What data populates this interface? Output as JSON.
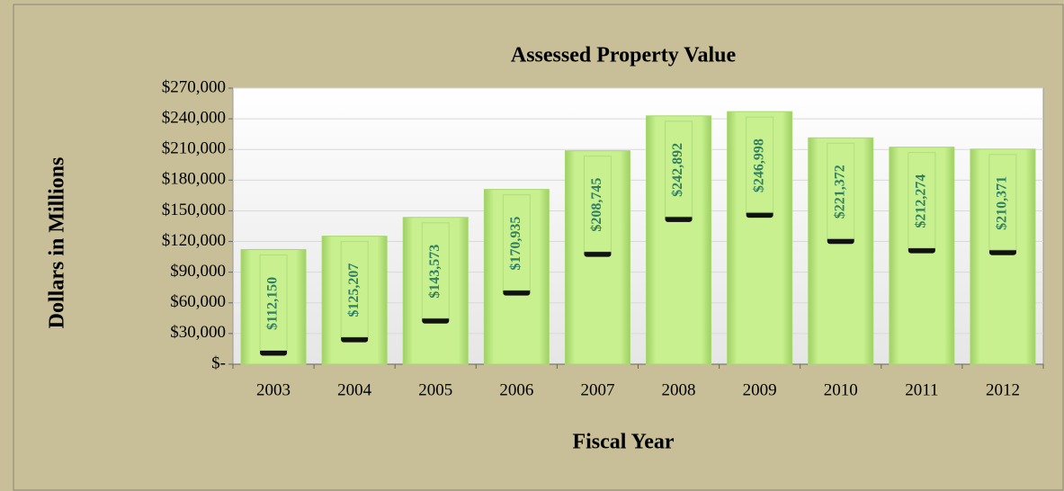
{
  "chart_data": {
    "type": "bar",
    "title": "Assessed Property Value",
    "x_label": "Fiscal Year",
    "y_label": "Dollars in Millions",
    "categories": [
      "2003",
      "2004",
      "2005",
      "2006",
      "2007",
      "2008",
      "2009",
      "2010",
      "2011",
      "2012"
    ],
    "values": [
      112150,
      125207,
      143573,
      170935,
      208745,
      242892,
      246998,
      221372,
      212274,
      210371
    ],
    "value_labels": [
      "$112,150",
      "$125,207",
      "$143,573",
      "$170,935",
      "$208,745",
      "$242,892",
      "$246,998",
      "$221,372",
      "$212,274",
      "$210,371"
    ],
    "color": "#c8f08f",
    "ylim": [
      0,
      270000
    ],
    "yticks": [
      {
        "value": 0,
        "label": "$-"
      },
      {
        "value": 30000,
        "label": "$30,000"
      },
      {
        "value": 60000,
        "label": "$60,000"
      },
      {
        "value": 90000,
        "label": "$90,000"
      },
      {
        "value": 120000,
        "label": "$120,000"
      },
      {
        "value": 150000,
        "label": "$150,000"
      },
      {
        "value": 180000,
        "label": "$180,000"
      },
      {
        "value": 210000,
        "label": "$210,000"
      },
      {
        "value": 240000,
        "label": "$240,000"
      },
      {
        "value": 270000,
        "label": "$270,000"
      }
    ],
    "grid": true
  }
}
